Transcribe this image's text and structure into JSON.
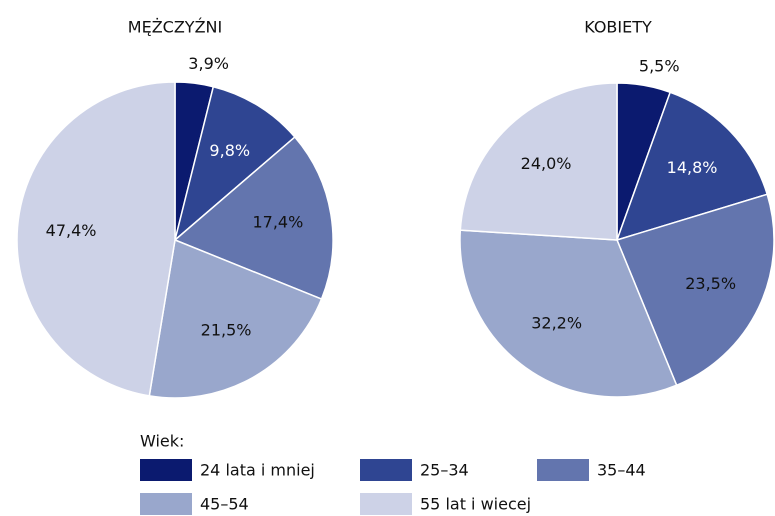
{
  "chart_data": [
    {
      "type": "pie",
      "title": "MĘŻCZYŹNI",
      "categories": [
        "24 lata i mniej",
        "25–34",
        "35–44",
        "45–54",
        "55 lat i wiecej"
      ],
      "values": [
        3.9,
        9.8,
        17.4,
        21.5,
        47.4
      ],
      "value_labels": [
        "3,9%",
        "9,8%",
        "17,4%",
        "21,5%",
        "47,4%"
      ],
      "colors": [
        "#0b1a6f",
        "#2f4592",
        "#6375ae",
        "#99a7cc",
        "#cdd2e7"
      ],
      "legend_title": "Wiek:"
    },
    {
      "type": "pie",
      "title": "KOBIETY",
      "categories": [
        "24 lata i mniej",
        "25–34",
        "35–44",
        "45–54",
        "55 lat i wiecej"
      ],
      "values": [
        5.5,
        14.8,
        23.5,
        32.2,
        24.0
      ],
      "value_labels": [
        "5,5%",
        "14,8%",
        "23,5%",
        "32,2%",
        "24,0%"
      ],
      "colors": [
        "#0b1a6f",
        "#2f4592",
        "#6375ae",
        "#99a7cc",
        "#cdd2e7"
      ]
    }
  ]
}
